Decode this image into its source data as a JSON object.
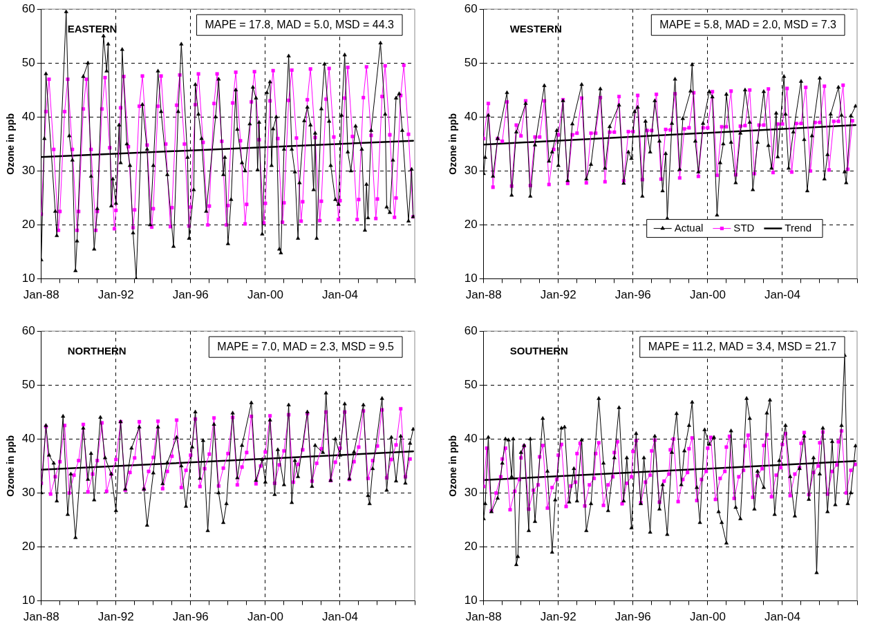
{
  "chart_data": [
    {
      "type": "line",
      "title": "EASTERN",
      "ylabel": "Ozone in ppb",
      "annotations": [
        "MAPE = 17.8, MAD = 5.0, MSD = 44.3"
      ],
      "xlim": [
        "1988-01",
        "2008-01"
      ],
      "ylim": [
        10,
        60
      ],
      "yticks": [
        10,
        20,
        30,
        40,
        50,
        60
      ],
      "grid": true,
      "legend": false,
      "xticks": [
        {
          "value": "1988-01",
          "label": "Jan-88"
        },
        {
          "value": "1989-01",
          "label": null
        },
        {
          "value": "1990-01",
          "label": null
        },
        {
          "value": "1991-01",
          "label": null
        },
        {
          "value": "1992-01",
          "label": "Jan-92"
        },
        {
          "value": "1993-01",
          "label": null
        },
        {
          "value": "1994-01",
          "label": null
        },
        {
          "value": "1995-01",
          "label": null
        },
        {
          "value": "1996-01",
          "label": "Jan-96"
        },
        {
          "value": "1997-01",
          "label": null
        },
        {
          "value": "1998-01",
          "label": null
        },
        {
          "value": "1999-01",
          "label": null
        },
        {
          "value": "2000-01",
          "label": "Jan-00"
        },
        {
          "value": "2001-01",
          "label": null
        },
        {
          "value": "2002-01",
          "label": null
        },
        {
          "value": "2003-01",
          "label": null
        },
        {
          "value": "2004-01",
          "label": "Jan-04"
        },
        {
          "value": "2005-01",
          "label": null
        },
        {
          "value": "2006-01",
          "label": null
        },
        {
          "value": "2007-01",
          "label": null
        },
        {
          "value": "2008-01",
          "label": null
        }
      ],
      "series": [
        {
          "color": "#000000",
          "marker": "triangle",
          "x": [
            "1988-01",
            "1988-03",
            "1988-04",
            "1988-10",
            "1988-11",
            "1989-05",
            "1989-07",
            "1989-09",
            "1989-11",
            "1989-12",
            "1990-04",
            "1990-07",
            "1990-09",
            "1990-11",
            "1991-01",
            "1991-05",
            "1991-07",
            "1991-08",
            "1991-10",
            "1991-11",
            "1992-01",
            "1992-03",
            "1992-04",
            "1992-05",
            "1992-08",
            "1992-10",
            "1992-12",
            "1993-02",
            "1993-06",
            "1993-09",
            "1993-11",
            "1994-01",
            "1994-04",
            "1994-06",
            "1994-10",
            "1995-02",
            "1995-05",
            "1995-07",
            "1995-11",
            "1995-12",
            "1996-03",
            "1996-04",
            "1996-06",
            "1996-08",
            "1996-11",
            "1997-05",
            "1997-07",
            "1997-10",
            "1997-11",
            "1998-01",
            "1998-03",
            "1998-06",
            "1998-07",
            "1998-10",
            "1998-12",
            "1999-03",
            "1999-05",
            "1999-07",
            "1999-08",
            "1999-09",
            "1999-11",
            "2000-02",
            "2000-04",
            "2000-05",
            "2000-06",
            "2000-08",
            "2000-10",
            "2000-11",
            "2001-01",
            "2001-04",
            "2001-06",
            "2001-08",
            "2001-10",
            "2001-11",
            "2002-02",
            "2002-04",
            "2002-06",
            "2002-08",
            "2002-09",
            "2002-10",
            "2003-01",
            "2003-03",
            "2003-06",
            "2003-07",
            "2003-10",
            "2003-12",
            "2004-02",
            "2004-04",
            "2004-06",
            "2004-08",
            "2004-11",
            "2005-03",
            "2005-05",
            "2005-06",
            "2005-07",
            "2005-09",
            "2006-03",
            "2006-06",
            "2006-07",
            "2006-09",
            "2006-11",
            "2007-01",
            "2007-03",
            "2007-05",
            "2007-09",
            "2007-11",
            "2007-12"
          ],
          "values": [
            13.5,
            36,
            48,
            22.5,
            18,
            59.5,
            36.5,
            32,
            11.5,
            17,
            47.5,
            50,
            29,
            15.5,
            23,
            55,
            48.5,
            53.5,
            23.5,
            28.5,
            24,
            38.5,
            31.5,
            52.5,
            35,
            31,
            18.5,
            10,
            42.3,
            34,
            20,
            31,
            48.5,
            41,
            29.3,
            16,
            41,
            53.5,
            32.5,
            17.5,
            26.5,
            46,
            40.5,
            36,
            22.5,
            40,
            47,
            29.3,
            32.5,
            16.5,
            24.7,
            45,
            37.7,
            31.5,
            30,
            38.7,
            45.5,
            43.5,
            30.2,
            39,
            18.3,
            44.5,
            46.5,
            31,
            37.8,
            40,
            15.5,
            14.8,
            34,
            51.3,
            34,
            29.8,
            17.5,
            27.8,
            39.3,
            41.8,
            38.5,
            26.5,
            37,
            17.5,
            41.5,
            49.8,
            39.2,
            31,
            24.7,
            23.8,
            40.3,
            51.5,
            33.5,
            30,
            38.3,
            34,
            19,
            27.5,
            21.3,
            37.5,
            53.7,
            40.5,
            23.3,
            22.3,
            32,
            43.5,
            44.3,
            37.5,
            20.7,
            30.3,
            21.5
          ]
        },
        {
          "color": "#ff00ff",
          "marker": "square",
          "x": [
            "1988-01",
            "1988-04",
            "1988-06",
            "1988-09",
            "1988-12",
            "1989-01",
            "1989-04",
            "1989-06",
            "1989-09",
            "1989-12",
            "1990-01",
            "1990-04",
            "1990-06",
            "1990-09",
            "1990-12",
            "1991-01",
            "1991-04",
            "1991-06",
            "1991-09",
            "1991-12",
            "1992-01",
            "1992-04",
            "1992-06",
            "1992-09",
            "1992-12",
            "1993-01",
            "1993-04",
            "1993-06",
            "1993-09",
            "1993-12",
            "1994-01",
            "1994-04",
            "1994-06",
            "1994-09",
            "1994-12",
            "1995-01",
            "1995-04",
            "1995-06",
            "1995-09",
            "1995-12",
            "1996-01",
            "1996-04",
            "1996-06",
            "1996-09",
            "1996-12",
            "1997-01",
            "1997-04",
            "1997-06",
            "1997-09",
            "1997-12",
            "1998-01",
            "1998-04",
            "1998-06",
            "1998-09",
            "1998-12",
            "1999-01",
            "1999-04",
            "1999-06",
            "1999-09",
            "1999-12",
            "2000-01",
            "2000-04",
            "2000-06",
            "2000-09",
            "2000-12",
            "2001-01",
            "2001-04",
            "2001-06",
            "2001-09",
            "2001-12",
            "2002-01",
            "2002-04",
            "2002-06",
            "2002-09",
            "2002-12",
            "2003-01",
            "2003-04",
            "2003-06",
            "2003-09",
            "2003-12",
            "2004-01",
            "2004-04",
            "2004-06",
            "2004-09",
            "2004-12",
            "2005-01",
            "2005-04",
            "2005-06",
            "2005-09",
            "2005-12",
            "2006-01",
            "2006-04",
            "2006-06",
            "2006-09",
            "2006-12",
            "2007-01",
            "2007-04",
            "2007-06",
            "2007-09",
            "2007-12"
          ],
          "values": [
            22,
            41,
            47,
            34,
            19,
            22.5,
            41,
            47,
            34,
            19,
            22.5,
            41.5,
            47,
            34,
            19,
            22.5,
            41.5,
            47.3,
            34.3,
            19.3,
            22.7,
            41.7,
            47.5,
            34.5,
            19.5,
            22.8,
            42,
            47.6,
            34.8,
            19.6,
            23,
            42,
            47.6,
            35,
            19.7,
            23.2,
            42.2,
            47.8,
            35,
            19.8,
            23.3,
            42.3,
            48,
            35.3,
            20,
            23.5,
            42.5,
            48,
            35.5,
            20,
            23.6,
            42.6,
            48.3,
            35.6,
            20.2,
            23.8,
            42.8,
            48.4,
            35.8,
            20.4,
            24,
            43,
            48.6,
            36,
            20.5,
            24.1,
            43.1,
            48.7,
            36.1,
            20.7,
            24.3,
            43.2,
            48.9,
            36.2,
            20.8,
            24.4,
            43.3,
            49,
            36.3,
            21,
            24.5,
            43.5,
            49.2,
            36.4,
            21,
            24.7,
            43.6,
            49.3,
            36.6,
            21.2,
            24.8,
            43.8,
            49.5,
            36.7,
            21.4,
            25,
            44,
            49.6,
            36.8,
            21.5
          ]
        },
        {
          "color": "#000000",
          "marker": "none",
          "x": [
            "1988-01",
            "2007-12"
          ],
          "values": [
            32.6,
            35.6
          ]
        }
      ]
    },
    {
      "type": "line",
      "title": "WESTERN",
      "ylabel": "Ozone in ppb",
      "annotations": [
        "MAPE = 5.8, MAD = 2.0, MSD = 7.3"
      ],
      "xlim": [
        "1988-01",
        "2008-01"
      ],
      "ylim": [
        10,
        60
      ],
      "yticks": [
        10,
        20,
        30,
        40,
        50,
        60
      ],
      "grid": true,
      "legend": "bottom right",
      "xticks": [
        {
          "value": "1988-01",
          "label": "Jan-88"
        },
        {
          "value": "1989-01",
          "label": null
        },
        {
          "value": "1990-01",
          "label": null
        },
        {
          "value": "1991-01",
          "label": null
        },
        {
          "value": "1992-01",
          "label": "Jan-92"
        },
        {
          "value": "1993-01",
          "label": null
        },
        {
          "value": "1994-01",
          "label": null
        },
        {
          "value": "1995-01",
          "label": null
        },
        {
          "value": "1996-01",
          "label": "Jan-96"
        },
        {
          "value": "1997-01",
          "label": null
        },
        {
          "value": "1998-01",
          "label": null
        },
        {
          "value": "1999-01",
          "label": null
        },
        {
          "value": "2000-01",
          "label": "Jan-00"
        },
        {
          "value": "2001-01",
          "label": null
        },
        {
          "value": "2002-01",
          "label": null
        },
        {
          "value": "2003-01",
          "label": null
        },
        {
          "value": "2004-01",
          "label": "Jan-04"
        },
        {
          "value": "2005-01",
          "label": null
        },
        {
          "value": "2006-01",
          "label": null
        },
        {
          "value": "2007-01",
          "label": null
        },
        {
          "value": "2008-01",
          "label": null
        }
      ],
      "series": [
        {
          "name": "Actual",
          "color": "#000000",
          "marker": "triangle",
          "x": [
            "1988-01",
            "1988-02",
            "1988-04",
            "1988-07",
            "1988-10",
            "1989-04",
            "1989-07",
            "1989-10",
            "1990-04",
            "1990-07",
            "1990-10",
            "1991-04",
            "1991-07",
            "1991-09",
            "1991-12",
            "1992-01",
            "1992-04",
            "1992-07",
            "1992-10",
            "1993-04",
            "1993-07",
            "1993-10",
            "1994-04",
            "1994-07",
            "1994-10",
            "1995-04",
            "1995-07",
            "1995-10",
            "1995-12",
            "1996-02",
            "1996-04",
            "1996-07",
            "1996-09",
            "1996-12",
            "1997-03",
            "1997-06",
            "1997-08",
            "1997-10",
            "1997-11",
            "1998-02",
            "1998-04",
            "1998-07",
            "1998-09",
            "1999-02",
            "1999-03",
            "1999-05",
            "1999-07",
            "1999-10",
            "2000-02",
            "2000-04",
            "2000-07",
            "2000-09",
            "2000-11",
            "2001-01",
            "2001-04",
            "2001-07",
            "2001-10",
            "2002-01",
            "2002-04",
            "2002-06",
            "2002-09",
            "2003-01",
            "2003-04",
            "2003-06",
            "2003-09",
            "2003-10",
            "2004-02",
            "2004-03",
            "2004-05",
            "2004-08",
            "2005-01",
            "2005-03",
            "2005-05",
            "2005-08",
            "2006-01",
            "2006-04",
            "2006-06",
            "2006-08",
            "2007-01",
            "2007-03",
            "2007-05",
            "2007-06",
            "2007-09",
            "2007-12"
          ],
          "values": [
            29.5,
            32.5,
            40.3,
            29,
            36,
            44.5,
            25.5,
            37.2,
            42.5,
            25.3,
            34.8,
            45.8,
            31.8,
            33.5,
            37.5,
            31,
            43,
            28.2,
            38.7,
            46,
            28.5,
            31.2,
            45.2,
            30.5,
            38.2,
            42.2,
            27.7,
            33.5,
            32.3,
            41,
            41.8,
            25.3,
            39.2,
            33.5,
            43,
            35.5,
            26.3,
            33.2,
            21.2,
            38.8,
            47,
            30.3,
            39.7,
            44.8,
            49.7,
            35.5,
            29.8,
            38.8,
            44.7,
            43.7,
            21.8,
            31.5,
            35,
            44.2,
            35.3,
            27.8,
            37,
            45,
            39,
            26.5,
            35.3,
            44.7,
            34.7,
            30.5,
            40.7,
            32.6,
            47.5,
            40.5,
            30.5,
            37.2,
            46.6,
            35.8,
            26.3,
            36.5,
            47.2,
            28.5,
            33,
            40.5,
            45.5,
            40.3,
            29.8,
            27.8,
            40.2,
            42
          ]
        },
        {
          "name": "STD",
          "color": "#ff00ff",
          "marker": "square",
          "x": [
            "1988-01",
            "1988-04",
            "1988-07",
            "1988-10",
            "1989-01",
            "1989-04",
            "1989-07",
            "1989-10",
            "1990-01",
            "1990-04",
            "1990-07",
            "1990-10",
            "1991-01",
            "1991-04",
            "1991-07",
            "1991-10",
            "1992-01",
            "1992-04",
            "1992-07",
            "1992-10",
            "1993-01",
            "1993-04",
            "1993-07",
            "1993-10",
            "1994-01",
            "1994-04",
            "1994-07",
            "1994-10",
            "1995-01",
            "1995-04",
            "1995-07",
            "1995-10",
            "1996-01",
            "1996-04",
            "1996-07",
            "1996-10",
            "1997-01",
            "1997-04",
            "1997-07",
            "1997-10",
            "1998-01",
            "1998-04",
            "1998-07",
            "1998-10",
            "1999-01",
            "1999-04",
            "1999-07",
            "1999-10",
            "2000-01",
            "2000-04",
            "2000-07",
            "2000-10",
            "2001-01",
            "2001-04",
            "2001-07",
            "2001-10",
            "2002-01",
            "2002-04",
            "2002-07",
            "2002-10",
            "2003-01",
            "2003-04",
            "2003-07",
            "2003-10",
            "2004-01",
            "2004-04",
            "2004-07",
            "2004-10",
            "2005-01",
            "2005-04",
            "2005-07",
            "2005-10",
            "2006-01",
            "2006-04",
            "2006-07",
            "2006-10",
            "2007-01",
            "2007-04",
            "2007-07",
            "2007-10"
          ],
          "values": [
            36,
            42.5,
            27,
            36,
            35.5,
            42.8,
            27.2,
            38.5,
            36.5,
            43,
            27.3,
            36.3,
            36.3,
            43,
            27.5,
            34,
            36.7,
            43.2,
            27.7,
            36.7,
            37,
            43.5,
            27.8,
            37,
            37,
            43.6,
            28,
            37.2,
            37.2,
            43.8,
            28.2,
            37.3,
            37.3,
            44,
            28.4,
            37.5,
            37.5,
            44.2,
            28.5,
            37.7,
            37.6,
            44.3,
            28.7,
            37.8,
            38,
            44.5,
            29,
            38,
            38,
            44.7,
            29.2,
            38.2,
            38.2,
            44.8,
            29.3,
            38.3,
            38.4,
            45,
            29.5,
            38.5,
            38.5,
            45.2,
            29.7,
            38.7,
            38.7,
            45.3,
            29.8,
            38.8,
            38.8,
            45.5,
            30,
            39,
            39,
            45.7,
            30.2,
            39.2,
            39.2,
            45.9,
            30.3,
            39.3
          ]
        },
        {
          "name": "Trend",
          "color": "#000000",
          "marker": "none",
          "x": [
            "1988-01",
            "2007-12"
          ],
          "values": [
            34.9,
            38.5
          ]
        }
      ]
    },
    {
      "type": "line",
      "title": "NORTHERN",
      "ylabel": "Ozone in ppb",
      "annotations": [
        "MAPE = 7.0, MAD = 2.3, MSD = 9.5"
      ],
      "xlim": [
        "1988-01",
        "2008-01"
      ],
      "ylim": [
        10,
        60
      ],
      "yticks": [
        10,
        20,
        30,
        40,
        50,
        60
      ],
      "grid": true,
      "legend": false,
      "xticks": [
        {
          "value": "1988-01",
          "label": "Jan-88"
        },
        {
          "value": "1989-01",
          "label": null
        },
        {
          "value": "1990-01",
          "label": null
        },
        {
          "value": "1991-01",
          "label": null
        },
        {
          "value": "1992-01",
          "label": "Jan-92"
        },
        {
          "value": "1993-01",
          "label": null
        },
        {
          "value": "1994-01",
          "label": null
        },
        {
          "value": "1995-01",
          "label": null
        },
        {
          "value": "1996-01",
          "label": "Jan-96"
        },
        {
          "value": "1997-01",
          "label": null
        },
        {
          "value": "1998-01",
          "label": null
        },
        {
          "value": "1999-01",
          "label": null
        },
        {
          "value": "2000-01",
          "label": "Jan-00"
        },
        {
          "value": "2001-01",
          "label": null
        },
        {
          "value": "2002-01",
          "label": null
        },
        {
          "value": "2003-01",
          "label": null
        },
        {
          "value": "2004-01",
          "label": "Jan-04"
        },
        {
          "value": "2005-01",
          "label": null
        },
        {
          "value": "2006-01",
          "label": null
        },
        {
          "value": "2007-01",
          "label": null
        },
        {
          "value": "2008-01",
          "label": null
        }
      ],
      "series": [
        {
          "color": "#000000",
          "marker": "triangle",
          "x": [
            "1988-01",
            "1988-04",
            "1988-06",
            "1988-09",
            "1988-11",
            "1989-03",
            "1989-06",
            "1989-08",
            "1989-11",
            "1990-04",
            "1990-07",
            "1990-09",
            "1990-11",
            "1991-03",
            "1991-06",
            "1991-10",
            "1992-01",
            "1992-04",
            "1992-07",
            "1992-11",
            "1993-04",
            "1993-07",
            "1993-09",
            "1994-01",
            "1994-04",
            "1994-07",
            "1994-10",
            "1995-04",
            "1995-07",
            "1995-10",
            "1996-02",
            "1996-04",
            "1996-07",
            "1996-09",
            "1996-12",
            "1997-04",
            "1997-07",
            "1997-10",
            "1997-12",
            "1998-04",
            "1998-07",
            "1998-10",
            "1999-04",
            "1999-07",
            "1999-11",
            "2000-01",
            "2000-04",
            "2000-07",
            "2000-09",
            "2001-01",
            "2001-04",
            "2001-06",
            "2001-08",
            "2001-10",
            "2002-04",
            "2002-07",
            "2002-09",
            "2003-02",
            "2003-04",
            "2003-07",
            "2003-10",
            "2004-01",
            "2004-04",
            "2004-07",
            "2004-10",
            "2005-04",
            "2005-07",
            "2005-08",
            "2005-10",
            "2006-04",
            "2006-07",
            "2006-10",
            "2007-01",
            "2007-04",
            "2007-07",
            "2007-10",
            "2007-12"
          ],
          "values": [
            30,
            42.5,
            37,
            35.5,
            28.5,
            44.2,
            26,
            33.5,
            21.7,
            42,
            32.5,
            37.3,
            28.7,
            44,
            36.5,
            33.5,
            26.7,
            43.2,
            30.7,
            38.3,
            42.2,
            30.7,
            24,
            33.7,
            42.2,
            31.7,
            35.6,
            40.3,
            35,
            27.5,
            38.5,
            45,
            32.7,
            39.7,
            23,
            42.7,
            30,
            24.5,
            28,
            44.8,
            32.8,
            38.8,
            46.7,
            32.3,
            36.2,
            32,
            43.5,
            29.7,
            38,
            31.5,
            46.3,
            28.2,
            36,
            33,
            45,
            31.2,
            38.8,
            37.5,
            48.5,
            32.3,
            40,
            37,
            46.5,
            32.6,
            37.6,
            46.3,
            29.5,
            28,
            34.5,
            47.5,
            30.5,
            40.3,
            32.2,
            40.5,
            31.8,
            39.2,
            41.8
          ]
        },
        {
          "color": "#ff00ff",
          "marker": "square",
          "x": [
            "1988-01",
            "1988-04",
            "1988-07",
            "1988-10",
            "1989-01",
            "1989-04",
            "1989-07",
            "1989-10",
            "1990-01",
            "1990-04",
            "1990-07",
            "1990-10",
            "1991-01",
            "1991-04",
            "1991-07",
            "1991-10",
            "1992-01",
            "1992-04",
            "1992-07",
            "1992-10",
            "1993-01",
            "1993-04",
            "1993-07",
            "1993-10",
            "1994-01",
            "1994-04",
            "1994-07",
            "1994-10",
            "1995-01",
            "1995-04",
            "1995-07",
            "1995-10",
            "1996-01",
            "1996-04",
            "1996-07",
            "1996-10",
            "1997-01",
            "1997-04",
            "1997-07",
            "1997-10",
            "1998-01",
            "1998-04",
            "1998-07",
            "1998-10",
            "1999-01",
            "1999-04",
            "1999-07",
            "1999-10",
            "2000-01",
            "2000-04",
            "2000-07",
            "2000-10",
            "2001-01",
            "2001-04",
            "2001-07",
            "2001-10",
            "2002-01",
            "2002-04",
            "2002-07",
            "2002-10",
            "2003-01",
            "2003-04",
            "2003-07",
            "2003-10",
            "2004-01",
            "2004-04",
            "2004-07",
            "2004-10",
            "2005-01",
            "2005-04",
            "2005-07",
            "2005-10",
            "2006-01",
            "2006-04",
            "2006-07",
            "2006-10",
            "2007-01",
            "2007-04",
            "2007-07",
            "2007-10"
          ],
          "values": [
            31.8,
            42.3,
            29.8,
            33,
            35.8,
            42.5,
            30,
            33.3,
            36,
            42.7,
            30.2,
            33.5,
            36,
            43,
            30.3,
            33.5,
            36.2,
            43.2,
            30.5,
            33.8,
            36.5,
            43.2,
            30.7,
            34,
            36.6,
            43.3,
            30.8,
            34,
            36.8,
            43.5,
            31,
            34.2,
            37,
            43.7,
            31.2,
            34.5,
            37.2,
            43.9,
            31.3,
            34.6,
            37.3,
            44,
            31.5,
            34.8,
            37.5,
            44.2,
            31.7,
            35,
            37.6,
            44.3,
            31.8,
            35.2,
            37.8,
            44.5,
            32,
            35.3,
            38,
            44.7,
            32.2,
            35.5,
            38.2,
            45,
            32.3,
            35.7,
            38.3,
            45,
            32.5,
            35.8,
            38.5,
            45.2,
            32.7,
            36,
            38.7,
            45.4,
            32.8,
            36.2,
            38.9,
            45.6,
            33,
            36.3
          ]
        },
        {
          "color": "#000000",
          "marker": "none",
          "x": [
            "1988-01",
            "2007-12"
          ],
          "values": [
            34.3,
            37.7
          ]
        }
      ]
    },
    {
      "type": "line",
      "title": "SOUTHERN",
      "ylabel": "Ozone in ppb",
      "annotations": [
        "MAPE = 11.2, MAD = 3.4, MSD = 21.7"
      ],
      "xlim": [
        "1988-01",
        "2008-01"
      ],
      "ylim": [
        10,
        60
      ],
      "yticks": [
        10,
        20,
        30,
        40,
        50,
        60
      ],
      "grid": true,
      "legend": false,
      "xticks": [
        {
          "value": "1988-01",
          "label": "Jan-88"
        },
        {
          "value": "1989-01",
          "label": null
        },
        {
          "value": "1990-01",
          "label": null
        },
        {
          "value": "1991-01",
          "label": null
        },
        {
          "value": "1992-01",
          "label": "Jan-92"
        },
        {
          "value": "1993-01",
          "label": null
        },
        {
          "value": "1994-01",
          "label": null
        },
        {
          "value": "1995-01",
          "label": null
        },
        {
          "value": "1996-01",
          "label": "Jan-96"
        },
        {
          "value": "1997-01",
          "label": null
        },
        {
          "value": "1998-01",
          "label": null
        },
        {
          "value": "1999-01",
          "label": null
        },
        {
          "value": "2000-01",
          "label": "Jan-00"
        },
        {
          "value": "2001-01",
          "label": null
        },
        {
          "value": "2002-01",
          "label": null
        },
        {
          "value": "2003-01",
          "label": null
        },
        {
          "value": "2004-01",
          "label": "Jan-04"
        },
        {
          "value": "2005-01",
          "label": null
        },
        {
          "value": "2006-01",
          "label": null
        },
        {
          "value": "2007-01",
          "label": null
        },
        {
          "value": "2008-01",
          "label": null
        }
      ],
      "series": [
        {
          "color": "#000000",
          "marker": "triangle",
          "x": [
            "1988-01",
            "1988-02",
            "1988-04",
            "1988-06",
            "1988-10",
            "1989-01",
            "1989-03",
            "1989-05",
            "1989-07",
            "1989-08",
            "1989-10",
            "1989-11",
            "1990-01",
            "1990-03",
            "1990-06",
            "1990-07",
            "1990-10",
            "1991-03",
            "1991-06",
            "1991-09",
            "1991-11",
            "1992-03",
            "1992-05",
            "1992-08",
            "1992-11",
            "1993-01",
            "1993-04",
            "1993-07",
            "1993-10",
            "1994-03",
            "1994-06",
            "1994-09",
            "1995-01",
            "1995-04",
            "1995-07",
            "1995-09",
            "1995-12",
            "1996-03",
            "1996-06",
            "1996-08",
            "1996-12",
            "1997-03",
            "1997-06",
            "1997-08",
            "1997-11",
            "1998-02",
            "1998-05",
            "1998-08",
            "1998-10",
            "1999-01",
            "1999-03",
            "1999-06",
            "1999-08",
            "1999-11",
            "2000-02",
            "2000-05",
            "2000-08",
            "2000-10",
            "2001-01",
            "2001-04",
            "2001-07",
            "2001-10",
            "2002-02",
            "2002-04",
            "2002-07",
            "2002-09",
            "2003-01",
            "2003-03",
            "2003-05",
            "2003-08",
            "2003-11",
            "2004-03",
            "2004-06",
            "2004-09",
            "2004-12",
            "2005-03",
            "2005-06",
            "2005-09",
            "2005-11",
            "2006-01",
            "2006-03",
            "2006-06",
            "2006-09",
            "2006-11",
            "2007-03",
            "2007-05",
            "2007-07",
            "2007-09",
            "2007-12"
          ],
          "values": [
            25.2,
            28,
            40.3,
            26.5,
            29,
            35.5,
            40,
            39.8,
            33,
            40,
            16.7,
            18.2,
            37.5,
            38.8,
            23,
            40,
            24.7,
            43.8,
            34,
            19,
            28.7,
            42,
            42.2,
            28.3,
            34.5,
            28.5,
            39.8,
            23,
            28,
            47.5,
            35.5,
            26.7,
            36.5,
            45.8,
            28.5,
            36.5,
            23.5,
            41,
            28,
            36.5,
            22.7,
            40.5,
            27,
            31.5,
            22.3,
            37.5,
            44.7,
            31.5,
            37.8,
            42.5,
            46.8,
            31,
            24.5,
            41.7,
            39,
            40.3,
            26.5,
            24.5,
            20.7,
            41.5,
            27.3,
            25.2,
            47.5,
            43.8,
            27,
            34,
            31,
            44.8,
            47.2,
            26,
            36,
            42.5,
            33,
            25.7,
            34.5,
            40.5,
            28.8,
            36.5,
            15.2,
            33.5,
            42,
            26.5,
            39.5,
            27.8,
            42.5,
            55.5,
            28,
            30,
            38.7
          ]
        },
        {
          "color": "#ff00ff",
          "marker": "square",
          "x": [
            "1988-01",
            "1988-03",
            "1988-06",
            "1988-09",
            "1988-12",
            "1989-01",
            "1989-03",
            "1989-06",
            "1989-09",
            "1989-12",
            "1990-01",
            "1990-03",
            "1990-06",
            "1990-09",
            "1990-12",
            "1991-01",
            "1991-03",
            "1991-06",
            "1991-09",
            "1991-12",
            "1992-01",
            "1992-03",
            "1992-06",
            "1992-09",
            "1992-12",
            "1993-01",
            "1993-03",
            "1993-06",
            "1993-09",
            "1993-12",
            "1994-01",
            "1994-03",
            "1994-06",
            "1994-09",
            "1994-12",
            "1995-01",
            "1995-03",
            "1995-06",
            "1995-09",
            "1995-12",
            "1996-01",
            "1996-03",
            "1996-06",
            "1996-09",
            "1996-12",
            "1997-01",
            "1997-03",
            "1997-06",
            "1997-09",
            "1997-12",
            "1998-01",
            "1998-03",
            "1998-06",
            "1998-09",
            "1998-12",
            "1999-01",
            "1999-03",
            "1999-06",
            "1999-09",
            "1999-12",
            "2000-01",
            "2000-03",
            "2000-06",
            "2000-09",
            "2000-12",
            "2001-01",
            "2001-03",
            "2001-06",
            "2001-09",
            "2001-12",
            "2002-01",
            "2002-03",
            "2002-06",
            "2002-09",
            "2002-12",
            "2003-01",
            "2003-03",
            "2003-06",
            "2003-09",
            "2003-12",
            "2004-01",
            "2004-03",
            "2004-06",
            "2004-09",
            "2004-12",
            "2005-01",
            "2005-03",
            "2005-06",
            "2005-09",
            "2005-12",
            "2006-01",
            "2006-03",
            "2006-06",
            "2006-09",
            "2006-12",
            "2007-01",
            "2007-03",
            "2007-06",
            "2007-09",
            "2007-12"
          ],
          "values": [
            31.2,
            38.3,
            26.7,
            30,
            33,
            36.3,
            38.3,
            26.9,
            30.3,
            32.5,
            36.5,
            38.7,
            27,
            30.5,
            31.5,
            36.7,
            38.8,
            27.2,
            31,
            32.5,
            37,
            39,
            27.5,
            31.3,
            32,
            37.3,
            39.2,
            27.6,
            31.5,
            32.7,
            37.3,
            39.3,
            27.7,
            31.5,
            33,
            37.5,
            39.5,
            28,
            31.8,
            33,
            37.7,
            39.7,
            28.2,
            32,
            33.3,
            37.8,
            39.8,
            28.3,
            32.2,
            33.5,
            38,
            40,
            28.4,
            32.5,
            33.8,
            38.2,
            40.2,
            28.6,
            32.5,
            34,
            38.3,
            40.3,
            28.8,
            32.7,
            34,
            38.5,
            40.5,
            29,
            33,
            34.2,
            38.7,
            40.7,
            29.2,
            33.2,
            34.5,
            38.8,
            40.8,
            29.3,
            33.3,
            34.7,
            39,
            41,
            29.5,
            33.5,
            34.7,
            39.2,
            41.2,
            29.7,
            33.8,
            35,
            39.3,
            41.3,
            29.8,
            34,
            35.2,
            39.5,
            41.5,
            30,
            34.2,
            35.3
          ]
        },
        {
          "color": "#000000",
          "marker": "none",
          "x": [
            "1988-01",
            "2007-12"
          ],
          "values": [
            32.4,
            35.9
          ]
        }
      ]
    }
  ]
}
